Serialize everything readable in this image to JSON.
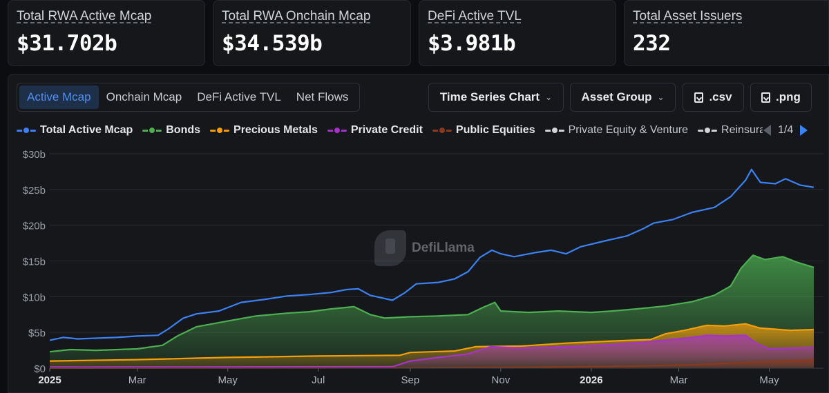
{
  "stats": [
    {
      "label": "Total RWA Active Mcap",
      "value": "$31.702b"
    },
    {
      "label": "Total RWA Onchain Mcap",
      "value": "$34.539b"
    },
    {
      "label": "DeFi Active TVL",
      "value": "$3.981b"
    },
    {
      "label": "Total Asset Issuers",
      "value": "232"
    }
  ],
  "tabs": [
    {
      "label": "Active Mcap",
      "active": true
    },
    {
      "label": "Onchain Mcap",
      "active": false
    },
    {
      "label": "DeFi Active TVL",
      "active": false
    },
    {
      "label": "Net Flows",
      "active": false
    }
  ],
  "controls": {
    "chart_type": "Time Series Chart",
    "group_by": "Asset Group",
    "csv": ".csv",
    "png": ".png"
  },
  "legend": {
    "items": [
      {
        "name": "Total Active Mcap",
        "color": "#3b82f6"
      },
      {
        "name": "Bonds",
        "color": "#4caf50"
      },
      {
        "name": "Precious Metals",
        "color": "#f59e0b"
      },
      {
        "name": "Private Credit",
        "color": "#a633c9"
      },
      {
        "name": "Public Equities",
        "color": "#8a3a1c"
      },
      {
        "name": "Private Equity & Venture",
        "color": "#d4d4d8"
      },
      {
        "name": "Reinsura",
        "color": "#d4d4d8"
      }
    ],
    "page": "1/4"
  },
  "watermark": "DefiLlama",
  "chart_data": {
    "type": "area",
    "x_ticks": [
      "2025",
      "Mar",
      "May",
      "Jul",
      "Sep",
      "Nov",
      "2026",
      "Mar",
      "May"
    ],
    "x_ticks_bold": [
      "2025",
      "2026"
    ],
    "x_start": "2025-01-01",
    "x_end": "2026-05-31",
    "y_ticks": [
      "$0",
      "$5b",
      "$10b",
      "$15b",
      "$20b",
      "$25b",
      "$30b"
    ],
    "ylim": [
      0,
      30
    ],
    "grid": true,
    "series": [
      {
        "name": "Total Active Mcap",
        "color": "#3b82f6",
        "fill": false,
        "points": [
          [
            "2025-01-01",
            3.9
          ],
          [
            "2025-01-10",
            4.3
          ],
          [
            "2025-01-20",
            4.1
          ],
          [
            "2025-02-01",
            4.2
          ],
          [
            "2025-02-15",
            4.3
          ],
          [
            "2025-03-01",
            4.5
          ],
          [
            "2025-03-15",
            4.6
          ],
          [
            "2025-03-22",
            5.5
          ],
          [
            "2025-04-01",
            7.0
          ],
          [
            "2025-04-10",
            7.6
          ],
          [
            "2025-04-25",
            8.0
          ],
          [
            "2025-05-10",
            9.2
          ],
          [
            "2025-05-25",
            9.6
          ],
          [
            "2025-06-10",
            10.1
          ],
          [
            "2025-06-25",
            10.3
          ],
          [
            "2025-07-10",
            10.6
          ],
          [
            "2025-07-20",
            11.0
          ],
          [
            "2025-07-28",
            11.1
          ],
          [
            "2025-08-05",
            10.2
          ],
          [
            "2025-08-20",
            9.5
          ],
          [
            "2025-08-28",
            10.5
          ],
          [
            "2025-09-05",
            11.8
          ],
          [
            "2025-09-20",
            12.0
          ],
          [
            "2025-10-01",
            12.5
          ],
          [
            "2025-10-10",
            13.5
          ],
          [
            "2025-10-18",
            15.5
          ],
          [
            "2025-10-26",
            16.5
          ],
          [
            "2025-11-01",
            16.0
          ],
          [
            "2025-11-10",
            15.6
          ],
          [
            "2025-11-25",
            16.2
          ],
          [
            "2025-12-05",
            16.5
          ],
          [
            "2025-12-15",
            16.0
          ],
          [
            "2025-12-25",
            17.0
          ],
          [
            "2026-01-10",
            17.8
          ],
          [
            "2026-01-25",
            18.5
          ],
          [
            "2026-02-05",
            19.5
          ],
          [
            "2026-02-12",
            20.3
          ],
          [
            "2026-02-25",
            20.8
          ],
          [
            "2026-03-10",
            21.8
          ],
          [
            "2026-03-25",
            22.5
          ],
          [
            "2026-04-05",
            24.0
          ],
          [
            "2026-04-15",
            26.3
          ],
          [
            "2026-04-19",
            27.8
          ],
          [
            "2026-04-25",
            26.0
          ],
          [
            "2026-05-05",
            25.8
          ],
          [
            "2026-05-12",
            26.5
          ],
          [
            "2026-05-22",
            25.6
          ],
          [
            "2026-05-31",
            25.3
          ]
        ]
      },
      {
        "name": "Bonds",
        "color": "#4caf50",
        "fill": true,
        "points": [
          [
            "2025-01-01",
            2.3
          ],
          [
            "2025-01-15",
            2.6
          ],
          [
            "2025-02-01",
            2.5
          ],
          [
            "2025-03-01",
            2.7
          ],
          [
            "2025-03-18",
            3.2
          ],
          [
            "2025-03-28",
            4.5
          ],
          [
            "2025-04-10",
            5.8
          ],
          [
            "2025-05-01",
            6.6
          ],
          [
            "2025-05-20",
            7.3
          ],
          [
            "2025-06-10",
            7.7
          ],
          [
            "2025-06-25",
            7.9
          ],
          [
            "2025-07-10",
            8.3
          ],
          [
            "2025-07-25",
            8.6
          ],
          [
            "2025-08-05",
            7.5
          ],
          [
            "2025-08-15",
            7.0
          ],
          [
            "2025-09-01",
            7.2
          ],
          [
            "2025-09-20",
            7.3
          ],
          [
            "2025-10-10",
            7.5
          ],
          [
            "2025-10-20",
            8.5
          ],
          [
            "2025-10-28",
            9.2
          ],
          [
            "2025-11-01",
            8.0
          ],
          [
            "2025-11-20",
            7.8
          ],
          [
            "2025-12-10",
            8.0
          ],
          [
            "2026-01-01",
            7.8
          ],
          [
            "2026-01-15",
            8.0
          ],
          [
            "2026-02-01",
            8.3
          ],
          [
            "2026-02-20",
            8.7
          ],
          [
            "2026-03-10",
            9.3
          ],
          [
            "2026-03-25",
            10.2
          ],
          [
            "2026-04-05",
            11.5
          ],
          [
            "2026-04-12",
            14.0
          ],
          [
            "2026-04-20",
            15.8
          ],
          [
            "2026-04-28",
            15.2
          ],
          [
            "2026-05-10",
            15.6
          ],
          [
            "2026-05-20",
            14.8
          ],
          [
            "2026-05-31",
            14.1
          ]
        ]
      },
      {
        "name": "Precious Metals",
        "color": "#f59e0b",
        "fill": true,
        "points": [
          [
            "2025-01-01",
            1.0
          ],
          [
            "2025-03-01",
            1.2
          ],
          [
            "2025-05-01",
            1.5
          ],
          [
            "2025-07-01",
            1.7
          ],
          [
            "2025-08-25",
            1.8
          ],
          [
            "2025-09-01",
            2.2
          ],
          [
            "2025-10-01",
            2.4
          ],
          [
            "2025-10-15",
            3.0
          ],
          [
            "2025-11-15",
            3.1
          ],
          [
            "2025-12-15",
            3.5
          ],
          [
            "2026-01-15",
            3.8
          ],
          [
            "2026-02-10",
            4.0
          ],
          [
            "2026-02-20",
            4.8
          ],
          [
            "2026-03-05",
            5.3
          ],
          [
            "2026-03-20",
            6.0
          ],
          [
            "2026-04-01",
            5.9
          ],
          [
            "2026-04-15",
            6.2
          ],
          [
            "2026-04-25",
            5.6
          ],
          [
            "2026-05-15",
            5.3
          ],
          [
            "2026-05-31",
            5.4
          ]
        ]
      },
      {
        "name": "Private Credit",
        "color": "#a633c9",
        "fill": true,
        "points": [
          [
            "2025-01-01",
            0.15
          ],
          [
            "2025-08-20",
            0.2
          ],
          [
            "2025-09-01",
            1.0
          ],
          [
            "2025-09-20",
            1.5
          ],
          [
            "2025-10-10",
            2.0
          ],
          [
            "2025-10-25",
            3.0
          ],
          [
            "2025-11-15",
            2.8
          ],
          [
            "2025-12-15",
            3.0
          ],
          [
            "2026-01-15",
            3.3
          ],
          [
            "2026-02-10",
            3.7
          ],
          [
            "2026-03-10",
            4.3
          ],
          [
            "2026-03-20",
            4.6
          ],
          [
            "2026-04-01",
            4.5
          ],
          [
            "2026-04-15",
            4.6
          ],
          [
            "2026-04-22",
            3.5
          ],
          [
            "2026-05-01",
            2.7
          ],
          [
            "2026-05-31",
            2.9
          ]
        ]
      },
      {
        "name": "Public Equities",
        "color": "#8a3a1c",
        "fill": true,
        "points": [
          [
            "2025-01-01",
            0.0
          ],
          [
            "2025-09-01",
            0.05
          ],
          [
            "2025-12-01",
            0.15
          ],
          [
            "2026-02-01",
            0.3
          ],
          [
            "2026-03-15",
            0.5
          ],
          [
            "2026-04-15",
            0.8
          ],
          [
            "2026-05-31",
            1.2
          ]
        ]
      }
    ]
  }
}
